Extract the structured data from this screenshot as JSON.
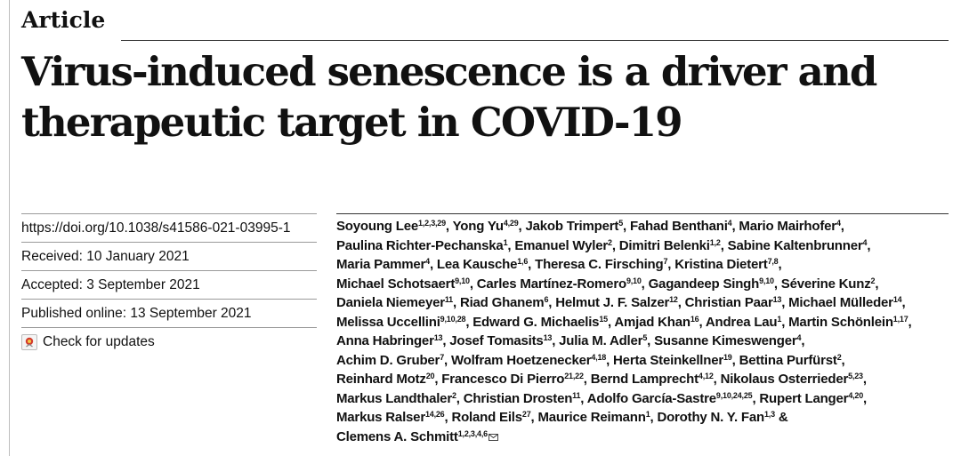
{
  "section_label": "Article",
  "title_lines": [
    "Virus-induced senescence is a driver and",
    "therapeutic target in COVID-19"
  ],
  "meta": {
    "doi": "https://doi.org/10.1038/s41586-021-03995-1",
    "received": "Received: 10 January 2021",
    "accepted": "Accepted: 3 September 2021",
    "published": "Published online: 13 September 2021",
    "check_updates": "Check for updates"
  },
  "author_lines": [
    [
      {
        "name": "Soyoung Lee",
        "aff": "1,2,3,29",
        "sep": ", "
      },
      {
        "name": "Yong Yu",
        "aff": "4,29",
        "sep": ", "
      },
      {
        "name": "Jakob Trimpert",
        "aff": "5",
        "sep": ", "
      },
      {
        "name": "Fahad Benthani",
        "aff": "4",
        "sep": ", "
      },
      {
        "name": "Mario Mairhofer",
        "aff": "4",
        "sep": ","
      }
    ],
    [
      {
        "name": "Paulina Richter-Pechanska",
        "aff": "1",
        "sep": ", "
      },
      {
        "name": "Emanuel Wyler",
        "aff": "2",
        "sep": ", "
      },
      {
        "name": "Dimitri Belenki",
        "aff": "1,2",
        "sep": ", "
      },
      {
        "name": "Sabine Kaltenbrunner",
        "aff": "4",
        "sep": ","
      }
    ],
    [
      {
        "name": "Maria Pammer",
        "aff": "4",
        "sep": ", "
      },
      {
        "name": "Lea Kausche",
        "aff": "1,6",
        "sep": ", "
      },
      {
        "name": "Theresa C. Firsching",
        "aff": "7",
        "sep": ", "
      },
      {
        "name": "Kristina Dietert",
        "aff": "7,8",
        "sep": ","
      }
    ],
    [
      {
        "name": "Michael Schotsaert",
        "aff": "9,10",
        "sep": ", "
      },
      {
        "name": "Carles Martínez-Romero",
        "aff": "9,10",
        "sep": ", "
      },
      {
        "name": "Gagandeep Singh",
        "aff": "9,10",
        "sep": ", "
      },
      {
        "name": "Séverine Kunz",
        "aff": "2",
        "sep": ","
      }
    ],
    [
      {
        "name": "Daniela Niemeyer",
        "aff": "11",
        "sep": ", "
      },
      {
        "name": "Riad Ghanem",
        "aff": "6",
        "sep": ", "
      },
      {
        "name": "Helmut J. F. Salzer",
        "aff": "12",
        "sep": ", "
      },
      {
        "name": "Christian Paar",
        "aff": "13",
        "sep": ", "
      },
      {
        "name": "Michael Mülleder",
        "aff": "14",
        "sep": ","
      }
    ],
    [
      {
        "name": "Melissa Uccellini",
        "aff": "9,10,28",
        "sep": ", "
      },
      {
        "name": "Edward G. Michaelis",
        "aff": "15",
        "sep": ", "
      },
      {
        "name": "Amjad Khan",
        "aff": "16",
        "sep": ", "
      },
      {
        "name": "Andrea Lau",
        "aff": "1",
        "sep": ", "
      },
      {
        "name": "Martin Schönlein",
        "aff": "1,17",
        "sep": ","
      }
    ],
    [
      {
        "name": "Anna Habringer",
        "aff": "13",
        "sep": ", "
      },
      {
        "name": "Josef Tomasits",
        "aff": "13",
        "sep": ", "
      },
      {
        "name": "Julia M. Adler",
        "aff": "5",
        "sep": ", "
      },
      {
        "name": "Susanne Kimeswenger",
        "aff": "4",
        "sep": ","
      }
    ],
    [
      {
        "name": "Achim D. Gruber",
        "aff": "7",
        "sep": ", "
      },
      {
        "name": "Wolfram Hoetzenecker",
        "aff": "4,18",
        "sep": ", "
      },
      {
        "name": "Herta Steinkellner",
        "aff": "19",
        "sep": ", "
      },
      {
        "name": "Bettina Purfürst",
        "aff": "2",
        "sep": ","
      }
    ],
    [
      {
        "name": "Reinhard Motz",
        "aff": "20",
        "sep": ", "
      },
      {
        "name": "Francesco Di Pierro",
        "aff": "21,22",
        "sep": ", "
      },
      {
        "name": "Bernd Lamprecht",
        "aff": "4,12",
        "sep": ", "
      },
      {
        "name": "Nikolaus Osterrieder",
        "aff": "5,23",
        "sep": ","
      }
    ],
    [
      {
        "name": "Markus Landthaler",
        "aff": "2",
        "sep": ", "
      },
      {
        "name": "Christian Drosten",
        "aff": "11",
        "sep": ", "
      },
      {
        "name": "Adolfo García-Sastre",
        "aff": "9,10,24,25",
        "sep": ", "
      },
      {
        "name": "Rupert Langer",
        "aff": "4,20",
        "sep": ","
      }
    ],
    [
      {
        "name": "Markus Ralser",
        "aff": "14,26",
        "sep": ", "
      },
      {
        "name": "Roland Eils",
        "aff": "27",
        "sep": ", "
      },
      {
        "name": "Maurice Reimann",
        "aff": "1",
        "sep": ", "
      },
      {
        "name": "Dorothy N. Y. Fan",
        "aff": "1,3",
        "sep": " &"
      }
    ],
    [
      {
        "name": "Clemens A. Schmitt",
        "aff": "1,2,3,4,6",
        "sep": "",
        "corresponding": true
      }
    ]
  ],
  "icons": {
    "check_updates": "check-for-updates-icon",
    "corresponding": "envelope-icon"
  },
  "colors": {
    "text": "#111111",
    "rule": "#333333",
    "icon_red": "#d23b2e"
  }
}
